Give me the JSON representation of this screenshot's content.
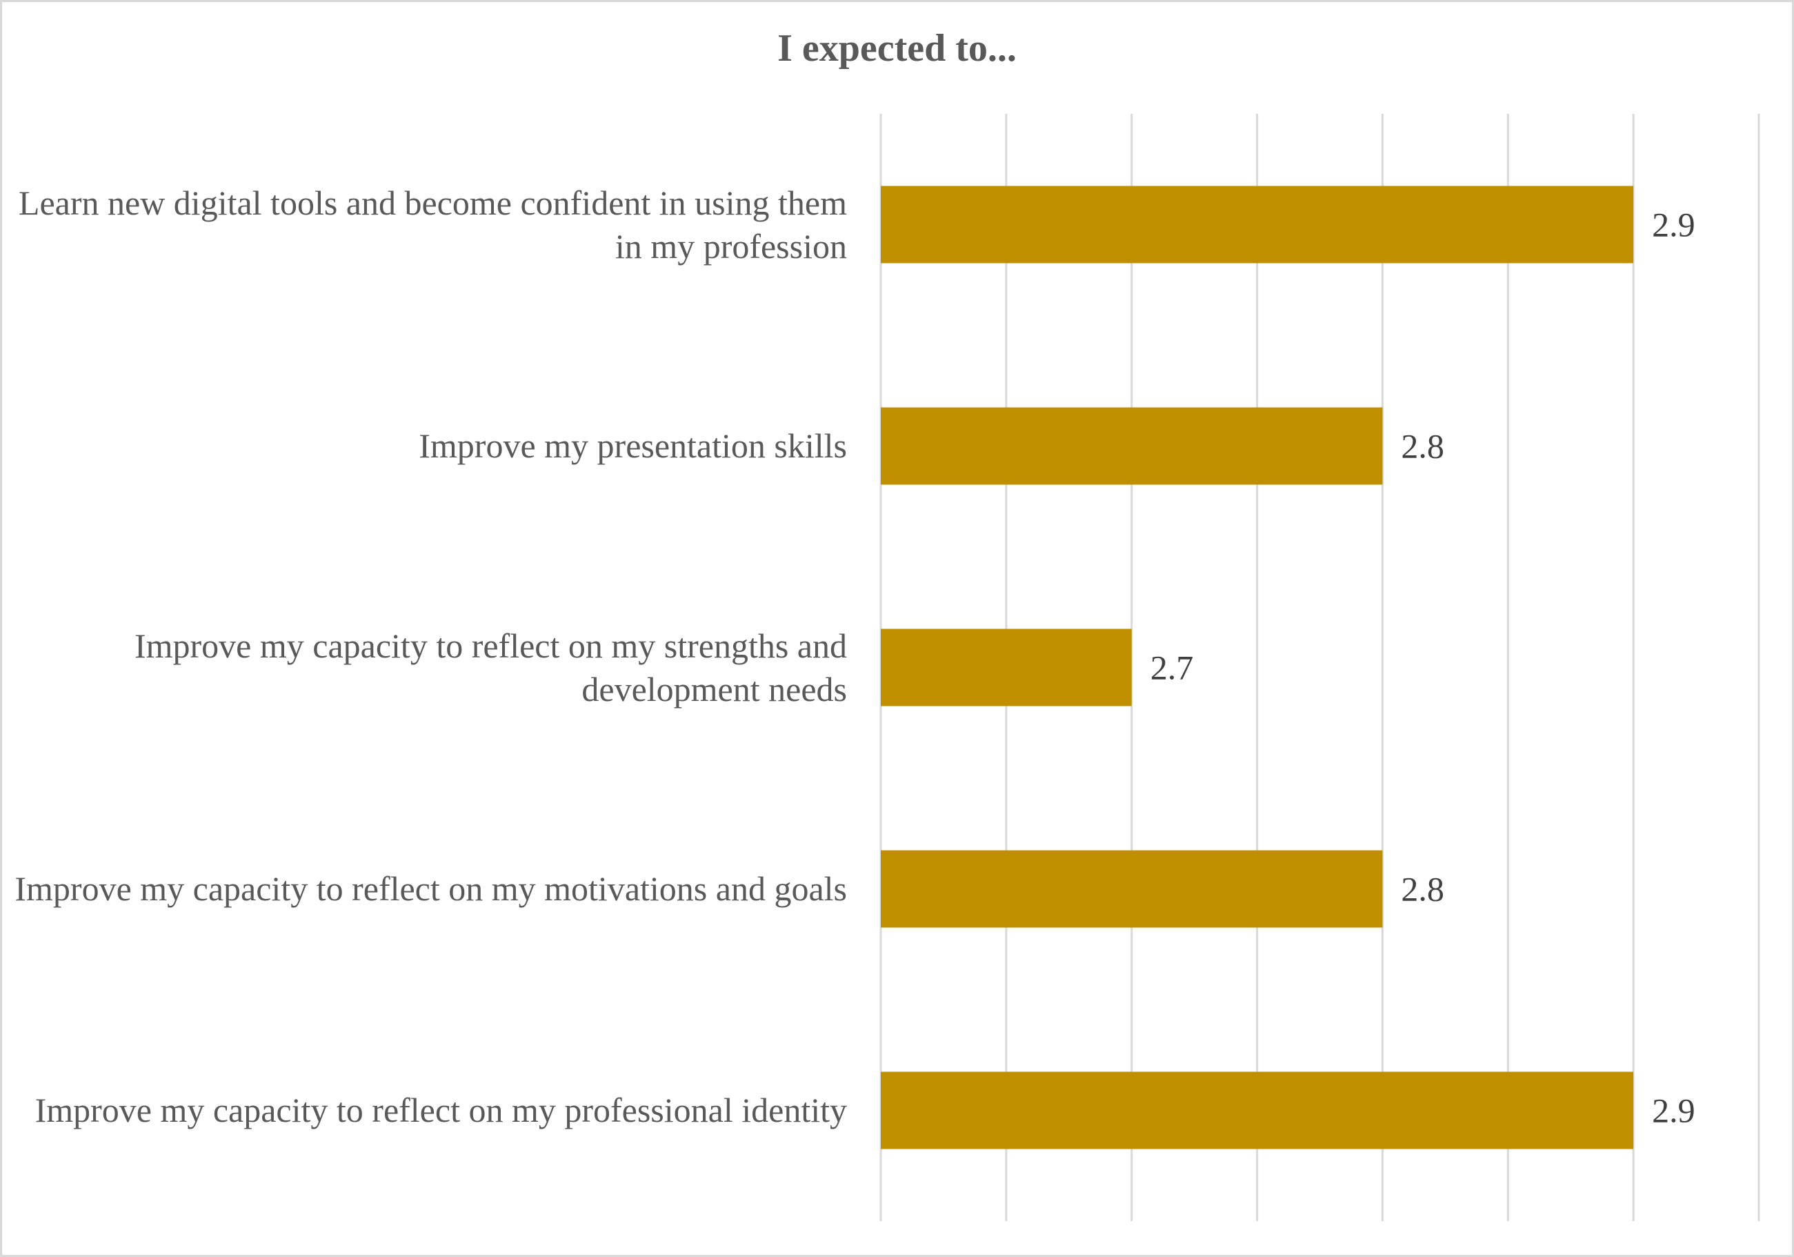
{
  "chart_data": {
    "type": "bar",
    "orientation": "horizontal",
    "title": "I expected to...",
    "xlabel": "",
    "ylabel": "",
    "categories": [
      "Learn new digital tools and become confident in using them in my profession",
      "Improve my presentation skills",
      "Improve my capacity to reflect on my strengths and development needs",
      "Improve my capacity to reflect on my motivations and goals",
      "Improve my capacity to reflect on my professional identity"
    ],
    "values": [
      2.9,
      2.8,
      2.7,
      2.8,
      2.9
    ],
    "data_labels": [
      "2.9",
      "2.8",
      "2.7",
      "2.8",
      "2.9"
    ],
    "xlim": [
      2.6,
      2.95
    ],
    "grid": true,
    "bar_color": "#BF8F00",
    "grid_color": "#d9d9d9",
    "text_color": "#595959"
  }
}
